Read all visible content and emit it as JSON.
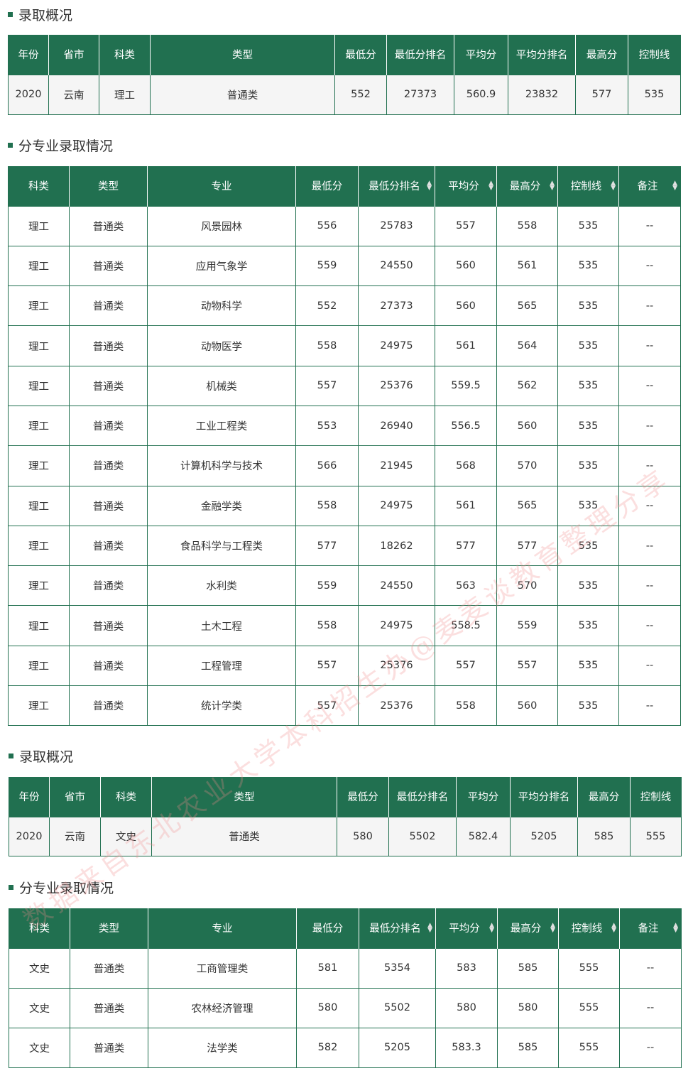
{
  "sections": [
    {
      "title": "录取概况",
      "kind": "summary",
      "headers": [
        "年份",
        "省市",
        "科类",
        "类型",
        "最低分",
        "最低分排名",
        "平均分",
        "平均分排名",
        "最高分",
        "控制线"
      ],
      "rows": [
        [
          "2020",
          "云南",
          "理工",
          "普通类",
          "552",
          "27373",
          "560.9",
          "23832",
          "577",
          "535"
        ]
      ]
    },
    {
      "title": "分专业录取情况",
      "kind": "major",
      "headers": [
        "科类",
        "类型",
        "专业",
        "最低分",
        "最低分排名",
        "平均分",
        "最高分",
        "控制线",
        "备注"
      ],
      "sortable": [
        false,
        false,
        false,
        false,
        true,
        true,
        true,
        true,
        true
      ],
      "rows": [
        [
          "理工",
          "普通类",
          "风景园林",
          "556",
          "25783",
          "557",
          "558",
          "535",
          "--"
        ],
        [
          "理工",
          "普通类",
          "应用气象学",
          "559",
          "24550",
          "560",
          "561",
          "535",
          "--"
        ],
        [
          "理工",
          "普通类",
          "动物科学",
          "552",
          "27373",
          "560",
          "565",
          "535",
          "--"
        ],
        [
          "理工",
          "普通类",
          "动物医学",
          "558",
          "24975",
          "561",
          "564",
          "535",
          "--"
        ],
        [
          "理工",
          "普通类",
          "机械类",
          "557",
          "25376",
          "559.5",
          "562",
          "535",
          "--"
        ],
        [
          "理工",
          "普通类",
          "工业工程类",
          "553",
          "26940",
          "556.5",
          "560",
          "535",
          "--"
        ],
        [
          "理工",
          "普通类",
          "计算机科学与技术",
          "566",
          "21945",
          "568",
          "570",
          "535",
          "--"
        ],
        [
          "理工",
          "普通类",
          "金融学类",
          "558",
          "24975",
          "561",
          "565",
          "535",
          "--"
        ],
        [
          "理工",
          "普通类",
          "食品科学与工程类",
          "577",
          "18262",
          "577",
          "577",
          "535",
          "--"
        ],
        [
          "理工",
          "普通类",
          "水利类",
          "559",
          "24550",
          "563",
          "570",
          "535",
          "--"
        ],
        [
          "理工",
          "普通类",
          "土木工程",
          "558",
          "24975",
          "558.5",
          "559",
          "535",
          "--"
        ],
        [
          "理工",
          "普通类",
          "工程管理",
          "557",
          "25376",
          "557",
          "557",
          "535",
          "--"
        ],
        [
          "理工",
          "普通类",
          "统计学类",
          "557",
          "25376",
          "558",
          "560",
          "535",
          "--"
        ]
      ]
    },
    {
      "title": "录取概况",
      "kind": "summary",
      "headers": [
        "年份",
        "省市",
        "科类",
        "类型",
        "最低分",
        "最低分排名",
        "平均分",
        "平均分排名",
        "最高分",
        "控制线"
      ],
      "rows": [
        [
          "2020",
          "云南",
          "文史",
          "普通类",
          "580",
          "5502",
          "582.4",
          "5205",
          "585",
          "555"
        ]
      ]
    },
    {
      "title": "分专业录取情况",
      "kind": "major",
      "headers": [
        "科类",
        "类型",
        "专业",
        "最低分",
        "最低分排名",
        "平均分",
        "最高分",
        "控制线",
        "备注"
      ],
      "sortable": [
        false,
        false,
        false,
        false,
        true,
        true,
        true,
        true,
        true
      ],
      "rows": [
        [
          "文史",
          "普通类",
          "工商管理类",
          "581",
          "5354",
          "583",
          "585",
          "555",
          "--"
        ],
        [
          "文史",
          "普通类",
          "农林经济管理",
          "580",
          "5502",
          "580",
          "580",
          "555",
          "--"
        ],
        [
          "文史",
          "普通类",
          "法学类",
          "582",
          "5205",
          "583.3",
          "585",
          "555",
          "--"
        ]
      ]
    }
  ],
  "watermark": "数据来自东北农业大学本科招生办@麦麦谈教育整理分享",
  "colors": {
    "header": "#217050",
    "summary_row": "#f5f5f5",
    "border": "#217050"
  }
}
